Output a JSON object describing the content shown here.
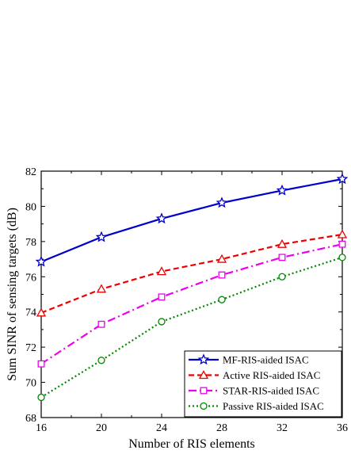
{
  "chart_data": {
    "type": "line",
    "xlabel": "Number of RIS elements",
    "ylabel": "Sum SINR of sensing targets (dB)",
    "xlim": [
      16,
      36
    ],
    "ylim": [
      68,
      82
    ],
    "xticks": [
      16,
      20,
      24,
      28,
      32,
      36
    ],
    "yticks": [
      68,
      70,
      72,
      74,
      76,
      78,
      80,
      82
    ],
    "xtick_labels": [
      "16",
      "20",
      "24",
      "28",
      "32",
      "36"
    ],
    "ytick_labels": [
      "68",
      "70",
      "72",
      "74",
      "76",
      "78",
      "80",
      "82"
    ],
    "grid": false,
    "legend_position": "bottom-right",
    "x": [
      16,
      20,
      24,
      28,
      32,
      36
    ],
    "series": [
      {
        "name": "MF-RIS-aided ISAC",
        "values": [
          76.85,
          78.25,
          79.3,
          80.2,
          80.9,
          81.55
        ],
        "color": "#0000cc",
        "dash": "solid",
        "marker": "star"
      },
      {
        "name": "Active RIS-aided ISAC",
        "values": [
          73.95,
          75.3,
          76.3,
          77.0,
          77.85,
          78.4
        ],
        "color": "#ee0000",
        "dash": "dashed",
        "marker": "triangle"
      },
      {
        "name": "STAR-RIS-aided ISAC",
        "values": [
          71.05,
          73.3,
          74.85,
          76.1,
          77.1,
          77.85
        ],
        "color": "#ee00ee",
        "dash": "dashdot",
        "marker": "square"
      },
      {
        "name": "Passive RIS-aided ISAC",
        "values": [
          69.15,
          71.25,
          73.45,
          74.7,
          76.0,
          77.1
        ],
        "color": "#008800",
        "dash": "dotted",
        "marker": "circle"
      }
    ]
  }
}
